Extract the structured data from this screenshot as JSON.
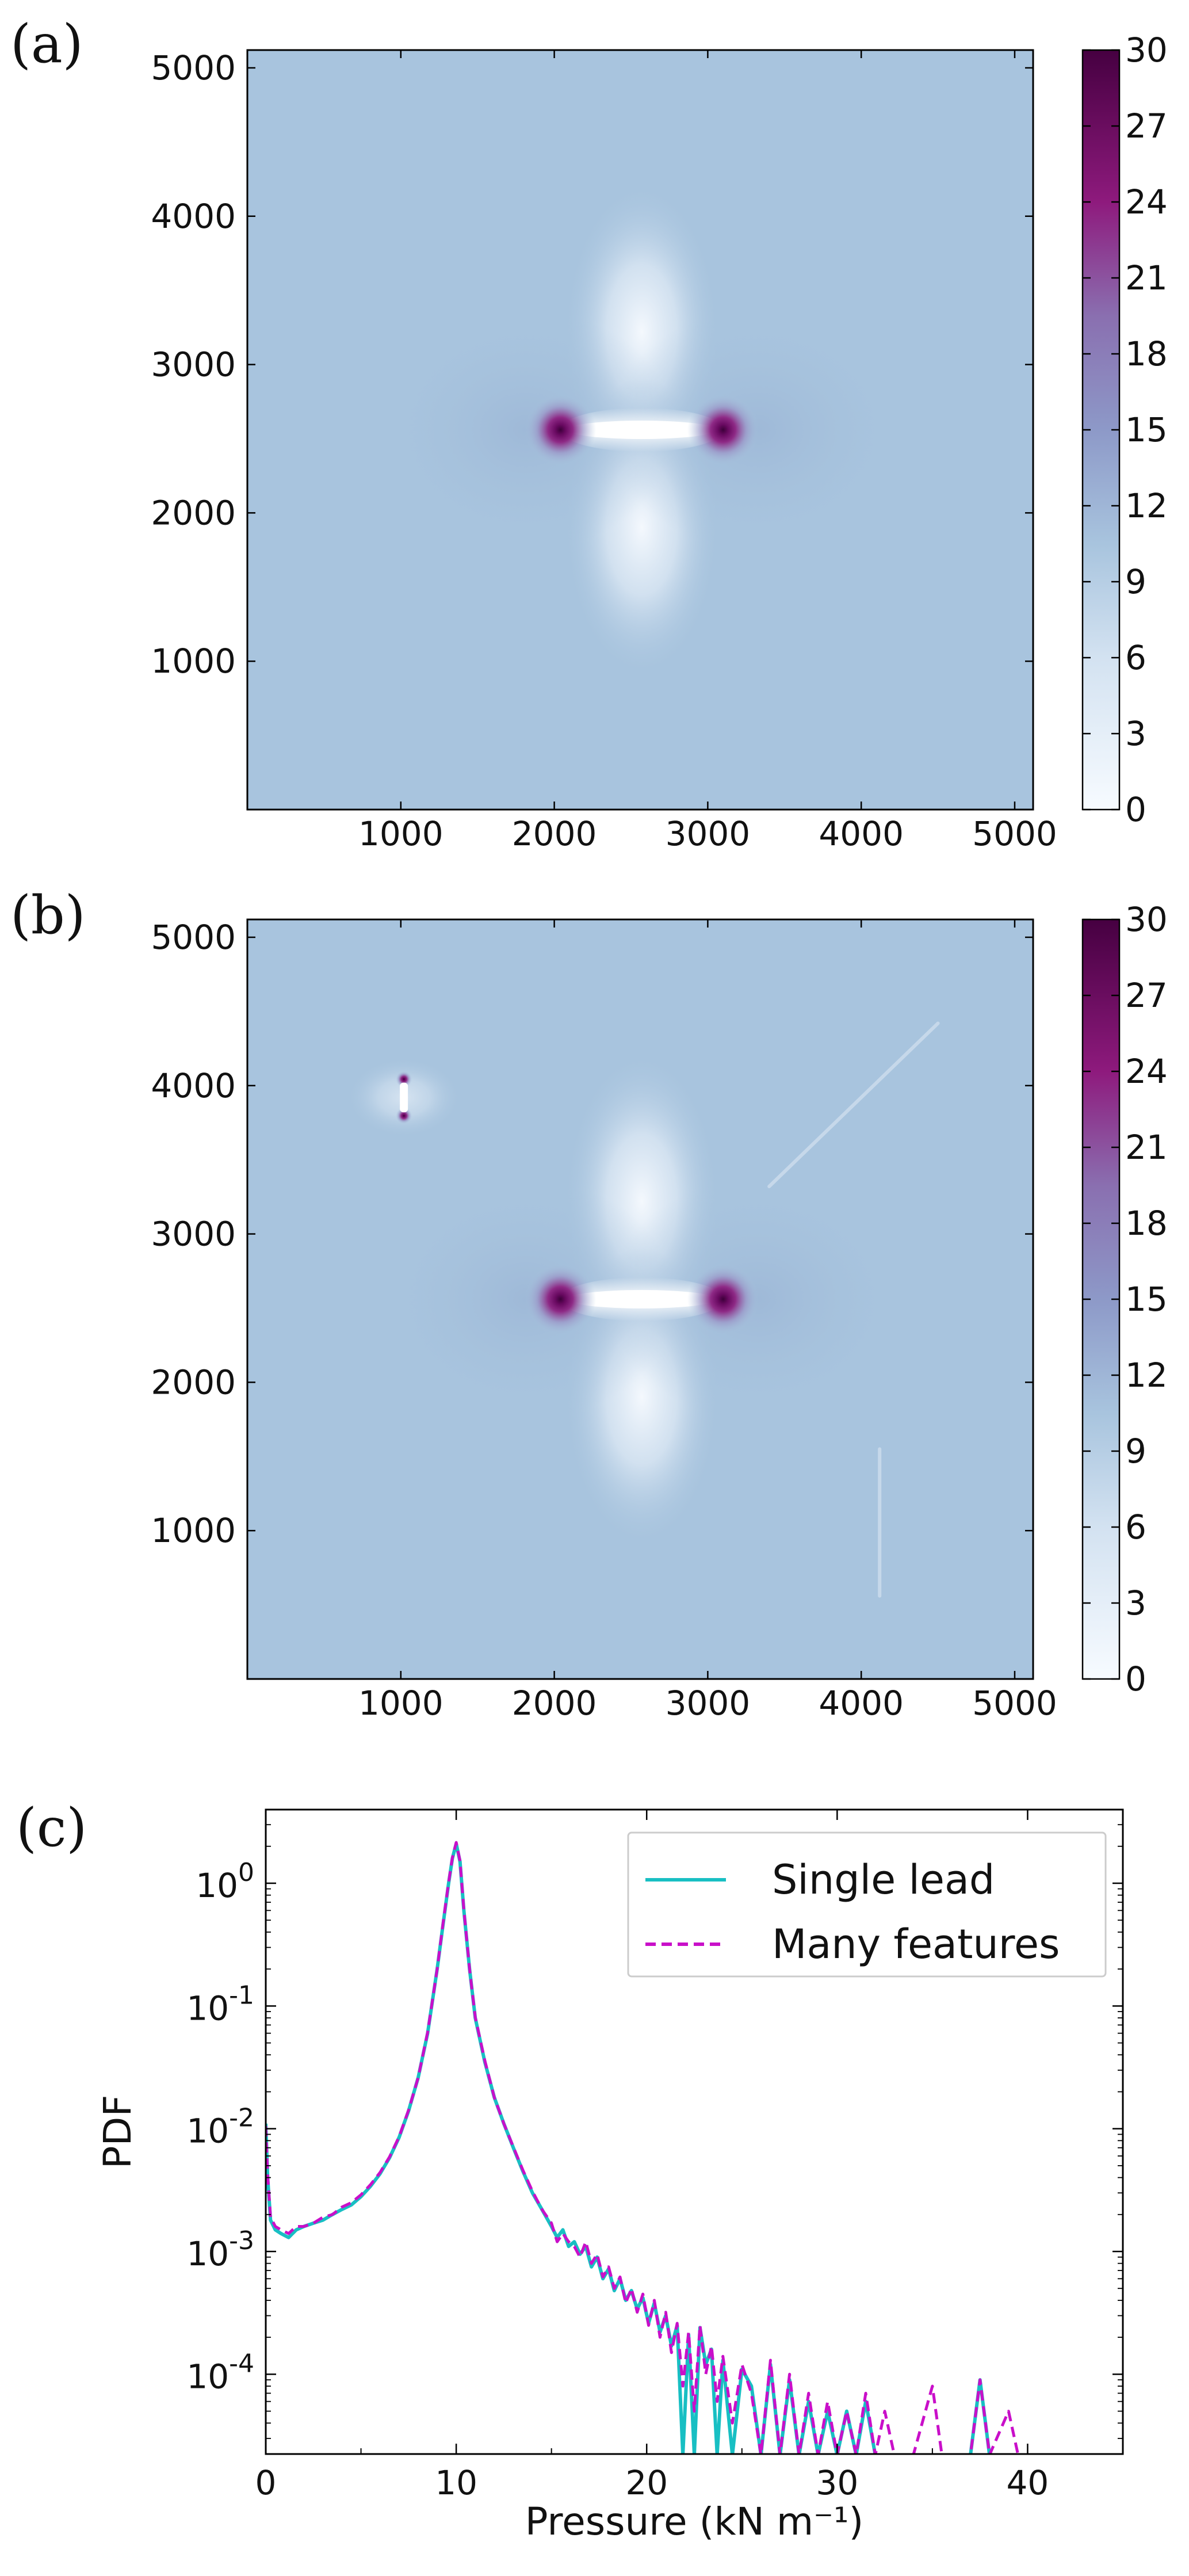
{
  "figure": {
    "panels": [
      {
        "label": "(a)",
        "x_ticks": [
          "1000",
          "2000",
          "3000",
          "4000",
          "5000"
        ],
        "y_ticks": [
          "1000",
          "2000",
          "3000",
          "4000",
          "5000"
        ],
        "colorbar_ticks": [
          "0",
          "3",
          "6",
          "9",
          "12",
          "15",
          "18",
          "21",
          "24",
          "27",
          "30"
        ]
      },
      {
        "label": "(b)",
        "x_ticks": [
          "1000",
          "2000",
          "3000",
          "4000",
          "5000"
        ],
        "y_ticks": [
          "1000",
          "2000",
          "3000",
          "4000",
          "5000"
        ],
        "colorbar_ticks": [
          "0",
          "3",
          "6",
          "9",
          "12",
          "15",
          "18",
          "21",
          "24",
          "27",
          "30"
        ]
      },
      {
        "label": "(c)"
      }
    ]
  },
  "chart_data": [
    {
      "type": "heatmap",
      "panel": "(a)",
      "xlim": [
        0,
        5120
      ],
      "ylim": [
        0,
        5120
      ],
      "x_ticks": [
        1000,
        2000,
        3000,
        4000,
        5000
      ],
      "y_ticks": [
        1000,
        2000,
        3000,
        4000,
        5000
      ],
      "colorbar": {
        "min": 0,
        "max": 30,
        "ticks": [
          0,
          3,
          6,
          9,
          12,
          15,
          18,
          21,
          24,
          27,
          30
        ],
        "colors": [
          "#f7fbff",
          "#a8c4de",
          "#8a6fb0",
          "#8e1a7d",
          "#460041"
        ]
      },
      "background_value": 10.5,
      "features": [
        {
          "kind": "lead",
          "x": [
            2040,
            3100
          ],
          "y": [
            2560,
            2560
          ],
          "value": 0
        },
        {
          "kind": "tip",
          "x": 2040,
          "y": 2560,
          "value": 30
        },
        {
          "kind": "tip",
          "x": 3100,
          "y": 2560,
          "value": 30
        }
      ]
    },
    {
      "type": "heatmap",
      "panel": "(b)",
      "xlim": [
        0,
        5120
      ],
      "ylim": [
        0,
        5120
      ],
      "x_ticks": [
        1000,
        2000,
        3000,
        4000,
        5000
      ],
      "y_ticks": [
        1000,
        2000,
        3000,
        4000,
        5000
      ],
      "colorbar": {
        "min": 0,
        "max": 30,
        "ticks": [
          0,
          3,
          6,
          9,
          12,
          15,
          18,
          21,
          24,
          27,
          30
        ],
        "colors": [
          "#f7fbff",
          "#a8c4de",
          "#8a6fb0",
          "#8e1a7d",
          "#460041"
        ]
      },
      "background_value": 10.5,
      "features": [
        {
          "kind": "lead",
          "x": [
            2040,
            3100
          ],
          "y": [
            2560,
            2560
          ],
          "value": 0
        },
        {
          "kind": "tip",
          "x": 2040,
          "y": 2560,
          "value": 30
        },
        {
          "kind": "tip",
          "x": 3100,
          "y": 2560,
          "value": 30
        },
        {
          "kind": "small-lead",
          "x": [
            1020,
            1020
          ],
          "y": [
            3820,
            4020
          ],
          "value": 0
        },
        {
          "kind": "faint-line",
          "x": [
            3400,
            4500
          ],
          "y": [
            3320,
            4420
          ],
          "value": 9
        },
        {
          "kind": "faint-line",
          "x": [
            4120,
            4120
          ],
          "y": [
            560,
            1550
          ],
          "value": 9
        }
      ]
    },
    {
      "type": "line",
      "panel": "(c)",
      "xlabel": "Pressure (kN m⁻¹)",
      "ylabel": "PDF",
      "xlim": [
        0,
        45
      ],
      "ylim_log10": [
        -4.65,
        0.6
      ],
      "y_scale": "log",
      "x_ticks": [
        0,
        10,
        20,
        30,
        40
      ],
      "y_ticks": [
        "10^0",
        "10^-1",
        "10^-2",
        "10^-3",
        "10^-4"
      ],
      "legend_position": "top-right",
      "series": [
        {
          "name": "Single lead",
          "color": "#18bfc3",
          "dash": "solid",
          "x": [
            0,
            0.1,
            0.25,
            0.5,
            0.8,
            1.2,
            1.6,
            2.0,
            2.5,
            3.0,
            3.5,
            4.0,
            4.5,
            5.0,
            5.5,
            6.0,
            6.5,
            7.0,
            7.5,
            8.0,
            8.5,
            9.0,
            9.3,
            9.6,
            9.8,
            10.0,
            10.2,
            10.4,
            10.7,
            11.0,
            11.5,
            12.0,
            12.5,
            13.0,
            13.5,
            14.0,
            14.5,
            15.0,
            15.3,
            15.6,
            15.9,
            16.2,
            16.5,
            16.8,
            17.1,
            17.4,
            17.7,
            18.0,
            18.3,
            18.6,
            18.9,
            19.2,
            19.5,
            19.8,
            20.1,
            20.4,
            20.7,
            21.0,
            21.3,
            21.6,
            21.9,
            22.2,
            22.5,
            22.8,
            23.1,
            23.4,
            23.7,
            24.0,
            24.5,
            25.0,
            25.5,
            26.0,
            26.5,
            27.0,
            27.5,
            28.0,
            28.5,
            29.0,
            29.5,
            30.0,
            30.5,
            31.0,
            31.5,
            32.0,
            33.0,
            34.0,
            35.0,
            36.0,
            37.0,
            37.5,
            38.0
          ],
          "y": [
            0.011,
            0.004,
            0.0018,
            0.0015,
            0.0014,
            0.0013,
            0.0015,
            0.0016,
            0.0017,
            0.0018,
            0.002,
            0.0022,
            0.0024,
            0.0028,
            0.0034,
            0.0043,
            0.0058,
            0.0085,
            0.014,
            0.026,
            0.06,
            0.2,
            0.45,
            1.0,
            1.6,
            2.1,
            1.5,
            0.6,
            0.2,
            0.08,
            0.035,
            0.018,
            0.011,
            0.007,
            0.0045,
            0.003,
            0.0022,
            0.0016,
            0.0013,
            0.0015,
            0.0011,
            0.0012,
            0.00095,
            0.0011,
            0.00075,
            0.0009,
            0.0006,
            0.00072,
            0.00048,
            0.0006,
            0.0004,
            0.00048,
            0.00034,
            0.00042,
            0.00026,
            0.00038,
            0.00022,
            0.0003,
            0.00017,
            0.00025,
            2.2e-05,
            0.00021,
            2.2e-05,
            0.00024,
            0.00012,
            0.00016,
            2.2e-05,
            0.00013,
            2.2e-05,
            0.00011,
            8e-05,
            2.2e-05,
            0.00012,
            2.2e-05,
            9e-05,
            2.2e-05,
            6e-05,
            2.2e-05,
            5e-05,
            2.2e-05,
            5e-05,
            2.2e-05,
            6e-05,
            2.2e-05,
            2.2e-05,
            2.2e-05,
            2.2e-05,
            2.2e-05,
            2.2e-05,
            9e-05,
            2.2e-05
          ]
        },
        {
          "name": "Many features",
          "color": "#c90fc9",
          "dash": "dashed",
          "x": [
            0,
            0.1,
            0.25,
            0.5,
            0.8,
            1.2,
            1.6,
            2.0,
            2.5,
            3.0,
            3.5,
            4.0,
            4.5,
            5.0,
            5.5,
            6.0,
            6.5,
            7.0,
            7.5,
            8.0,
            8.5,
            9.0,
            9.3,
            9.6,
            9.8,
            10.0,
            10.2,
            10.4,
            10.7,
            11.0,
            11.5,
            12.0,
            12.5,
            13.0,
            13.5,
            14.0,
            14.5,
            15.0,
            15.3,
            15.6,
            15.9,
            16.2,
            16.5,
            16.8,
            17.1,
            17.4,
            17.7,
            18.0,
            18.3,
            18.6,
            18.9,
            19.2,
            19.5,
            19.8,
            20.1,
            20.4,
            20.7,
            21.0,
            21.3,
            21.6,
            21.9,
            22.2,
            22.5,
            22.8,
            23.1,
            23.4,
            23.7,
            24.0,
            24.5,
            25.0,
            25.5,
            26.0,
            26.5,
            27.0,
            27.5,
            28.0,
            28.5,
            29.0,
            29.5,
            30.0,
            30.5,
            31.0,
            31.5,
            32.0,
            32.5,
            33.0,
            34.0,
            35.0,
            35.5,
            36.0,
            37.0,
            37.5,
            38.0,
            39.0,
            39.5,
            40.0,
            41.0,
            41.5,
            42.0,
            42.5
          ],
          "y": [
            0.0105,
            0.0042,
            0.0019,
            0.0016,
            0.0015,
            0.0014,
            0.0016,
            0.0016,
            0.0017,
            0.0019,
            0.002,
            0.0023,
            0.0025,
            0.0029,
            0.0035,
            0.0044,
            0.0059,
            0.0086,
            0.0142,
            0.026,
            0.061,
            0.2,
            0.46,
            1.02,
            1.62,
            2.15,
            1.52,
            0.61,
            0.2,
            0.081,
            0.036,
            0.018,
            0.011,
            0.0071,
            0.0046,
            0.0031,
            0.0022,
            0.0017,
            0.0012,
            0.0014,
            0.0012,
            0.0011,
            0.0009,
            0.0012,
            0.0008,
            0.00095,
            0.00062,
            0.00075,
            0.0005,
            0.00062,
            0.00038,
            0.0005,
            0.00032,
            0.00045,
            0.00025,
            0.0004,
            0.0002,
            0.00032,
            0.00015,
            0.00026,
            8e-05,
            0.00022,
            5e-05,
            0.00025,
            0.0001,
            0.00017,
            6e-05,
            0.00014,
            4e-05,
            0.00012,
            7e-05,
            2.2e-05,
            0.00013,
            2.2e-05,
            0.0001,
            2.2e-05,
            7e-05,
            2.2e-05,
            6e-05,
            2.2e-05,
            5e-05,
            2.2e-05,
            7e-05,
            2.2e-05,
            5e-05,
            2.2e-05,
            2.2e-05,
            8e-05,
            2.2e-05,
            2.2e-05,
            2.2e-05,
            9e-05,
            2.2e-05,
            5e-05,
            2.2e-05,
            2.2e-05,
            2.2e-05,
            2.2e-05,
            2.2e-05,
            2.2e-05
          ]
        }
      ]
    }
  ]
}
